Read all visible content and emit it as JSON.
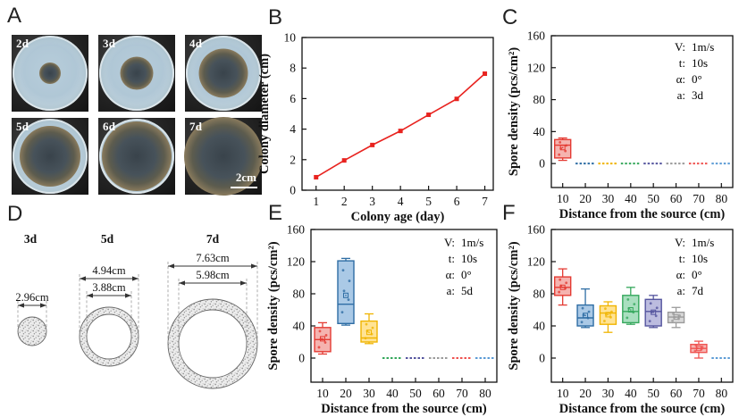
{
  "palette": {
    "axis_color": "#111111",
    "line_color": "#e8231f",
    "box_stroke": [
      "#e43b33",
      "#2e6da4",
      "#f0b400",
      "#35a85c",
      "#54549e",
      "#9b9b9b",
      "#ef5350",
      "#5b9bd5"
    ],
    "box_fill": [
      "#f5b3af",
      "#aac9e6",
      "#ffe394",
      "#a9dfbf",
      "#bcbcdf",
      "#d8d8d8",
      "#f6b6b3",
      "#b4d2ee"
    ]
  },
  "panels": {
    "A": {
      "label": "A",
      "dishes": [
        {
          "day": "2d"
        },
        {
          "day": "3d"
        },
        {
          "day": "4d"
        },
        {
          "day": "5d"
        },
        {
          "day": "6d"
        },
        {
          "day": "7d",
          "scale_label": "2cm"
        }
      ]
    },
    "B": {
      "label": "B"
    },
    "C": {
      "label": "C",
      "legend": [
        {
          "k": "V:",
          "v": "1m/s"
        },
        {
          "k": "t:",
          "v": "10s"
        },
        {
          "k": "α:",
          "v": "0°"
        },
        {
          "k": "a:",
          "v": "3d"
        }
      ]
    },
    "D": {
      "label": "D",
      "shapes": [
        {
          "day": "3d",
          "outer_label": "2.96cm"
        },
        {
          "day": "5d",
          "outer_label": "4.94cm",
          "inner_label": "3.88cm"
        },
        {
          "day": "7d",
          "outer_label": "7.63cm",
          "inner_label": "5.98cm"
        }
      ]
    },
    "E": {
      "label": "E",
      "legend": [
        {
          "k": "V:",
          "v": "1m/s"
        },
        {
          "k": "t:",
          "v": "10s"
        },
        {
          "k": "α:",
          "v": "0°"
        },
        {
          "k": "a:",
          "v": "5d"
        }
      ]
    },
    "F": {
      "label": "F",
      "legend": [
        {
          "k": "V:",
          "v": "1m/s"
        },
        {
          "k": "t:",
          "v": "10s"
        },
        {
          "k": "α:",
          "v": "0°"
        },
        {
          "k": "a:",
          "v": "7d"
        }
      ]
    }
  },
  "chart_data": [
    {
      "id": "colony-diameter-growth",
      "panel": "B",
      "type": "line",
      "x": [
        1,
        2,
        3,
        4,
        5,
        6,
        7
      ],
      "values": [
        0.85,
        1.95,
        2.96,
        3.88,
        4.94,
        5.98,
        7.63
      ],
      "xlabel": "Colony age (day)",
      "ylabel": "Colony diameter (cm)",
      "xlim": [
        0.5,
        7.3
      ],
      "ylim": [
        0,
        10
      ],
      "yticks": [
        0,
        2,
        4,
        6,
        8,
        10
      ],
      "marker": "square",
      "grid": false,
      "color": "#e8231f"
    },
    {
      "id": "spore-density-3d",
      "panel": "C",
      "type": "box",
      "condition_label": "V: 1m/s, t: 10s, α: 0°, a: 3d",
      "categories": [
        10,
        20,
        30,
        40,
        50,
        60,
        70,
        80
      ],
      "xlabel": "Distance from the source (cm)",
      "ylabel": "Spore density (pcs/cm²)",
      "ylim": [
        -30,
        160
      ],
      "yticks": [
        0,
        40,
        80,
        120,
        160
      ],
      "grid": false,
      "boxes": [
        {
          "whislo": 4,
          "q1": 7,
          "med": 23,
          "q3": 30,
          "whishi": 32,
          "mean": 20
        },
        {
          "flat": true,
          "value": 0
        },
        {
          "flat": true,
          "value": 0
        },
        {
          "flat": true,
          "value": 0
        },
        {
          "flat": true,
          "value": 0
        },
        {
          "flat": true,
          "value": 0
        },
        {
          "flat": true,
          "value": 0
        },
        {
          "flat": true,
          "value": 0
        }
      ]
    },
    {
      "id": "spore-density-5d",
      "panel": "E",
      "type": "box",
      "condition_label": "V: 1m/s, t: 10s, α: 0°, a: 5d",
      "categories": [
        10,
        20,
        30,
        40,
        50,
        60,
        70,
        80
      ],
      "xlabel": "Distance from the source (cm)",
      "ylabel": "Spore density (pcs/cm²)",
      "ylim": [
        -30,
        160
      ],
      "yticks": [
        0,
        40,
        80,
        120,
        160
      ],
      "grid": false,
      "boxes": [
        {
          "whislo": 5,
          "q1": 8,
          "med": 23,
          "q3": 38,
          "whishi": 44,
          "mean": 24
        },
        {
          "whislo": 41,
          "q1": 43,
          "med": 67,
          "q3": 121,
          "whishi": 124,
          "mean": 78
        },
        {
          "whislo": 18,
          "q1": 20,
          "med": 25,
          "q3": 46,
          "whishi": 55,
          "mean": 32
        },
        {
          "flat": true,
          "value": 0
        },
        {
          "flat": true,
          "value": 0
        },
        {
          "flat": true,
          "value": 0
        },
        {
          "flat": true,
          "value": 0
        },
        {
          "flat": true,
          "value": 0
        }
      ]
    },
    {
      "id": "spore-density-7d",
      "panel": "F",
      "type": "box",
      "condition_label": "V: 1m/s, t: 10s, α: 0°, a: 7d",
      "categories": [
        10,
        20,
        30,
        40,
        50,
        60,
        70,
        80
      ],
      "xlabel": "Distance from the source (cm)",
      "ylabel": "Spore density (pcs/cm²)",
      "ylim": [
        -30,
        160
      ],
      "yticks": [
        0,
        40,
        80,
        120,
        160
      ],
      "grid": false,
      "boxes": [
        {
          "whislo": 66,
          "q1": 78,
          "med": 88,
          "q3": 101,
          "whishi": 111,
          "mean": 88
        },
        {
          "whislo": 38,
          "q1": 40,
          "med": 50,
          "q3": 66,
          "whishi": 86,
          "mean": 53
        },
        {
          "whislo": 32,
          "q1": 42,
          "med": 56,
          "q3": 65,
          "whishi": 70,
          "mean": 54
        },
        {
          "whislo": 42,
          "q1": 44,
          "med": 58,
          "q3": 78,
          "whishi": 88,
          "mean": 60
        },
        {
          "whislo": 38,
          "q1": 40,
          "med": 58,
          "q3": 73,
          "whishi": 78,
          "mean": 57
        },
        {
          "whislo": 38,
          "q1": 44,
          "med": 51,
          "q3": 57,
          "whishi": 63,
          "mean": 51
        },
        {
          "whislo": 0,
          "q1": 7,
          "med": 12,
          "q3": 17,
          "whishi": 21,
          "mean": 12
        },
        {
          "flat": true,
          "value": 0
        }
      ]
    }
  ]
}
